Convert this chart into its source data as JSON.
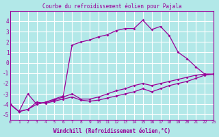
{
  "title": "Courbe du refroidissement éolien pour Pajala",
  "xlabel": "Windchill (Refroidissement éolien,°C)",
  "ylabel": "",
  "background_color": "#b2e8e8",
  "line_color": "#990099",
  "xlim": [
    0,
    23
  ],
  "ylim": [
    -5.5,
    5
  ],
  "xticks": [
    0,
    1,
    2,
    3,
    4,
    5,
    6,
    7,
    8,
    9,
    10,
    11,
    12,
    13,
    14,
    15,
    16,
    17,
    18,
    19,
    20,
    21,
    22,
    23
  ],
  "yticks": [
    -5,
    -4,
    -3,
    -2,
    -1,
    0,
    1,
    2,
    3,
    4
  ],
  "series1_x": [
    0,
    1,
    2,
    3,
    4,
    5,
    6,
    7,
    8,
    9,
    10,
    11,
    12,
    13,
    14,
    15,
    16,
    17,
    18,
    19,
    20,
    21,
    22,
    23
  ],
  "series1_y": [
    -4.0,
    -4.7,
    -4.5,
    -3.8,
    -3.9,
    -3.7,
    -3.5,
    -3.3,
    -3.6,
    -3.7,
    -3.6,
    -3.4,
    -3.2,
    -3.0,
    -2.8,
    -2.5,
    -2.8,
    -2.5,
    -2.2,
    -2.0,
    -1.8,
    -1.5,
    -1.2,
    -1.1
  ],
  "series2_x": [
    0,
    1,
    2,
    3,
    4,
    5,
    6,
    7,
    8,
    9,
    10,
    11,
    12,
    13,
    14,
    15,
    16,
    17,
    18,
    19,
    20,
    21,
    22,
    23
  ],
  "series2_y": [
    -4.0,
    -4.7,
    -3.0,
    -4.0,
    -3.8,
    -3.5,
    -3.2,
    1.7,
    2.0,
    2.2,
    2.5,
    2.7,
    3.1,
    3.3,
    3.3,
    4.1,
    3.2,
    3.5,
    2.6,
    1.0,
    0.4,
    -0.4,
    -1.1,
    -1.1
  ],
  "series3_x": [
    0,
    1,
    2,
    3,
    4,
    5,
    6,
    7,
    8,
    9,
    10,
    11,
    12,
    13,
    14,
    15,
    16,
    17,
    18,
    19,
    20,
    21,
    22,
    23
  ],
  "series3_y": [
    -4.0,
    -4.7,
    -4.5,
    -4.0,
    -3.8,
    -3.6,
    -3.3,
    -3.0,
    -3.5,
    -3.5,
    -3.3,
    -3.0,
    -2.7,
    -2.5,
    -2.2,
    -2.0,
    -2.2,
    -2.0,
    -1.8,
    -1.6,
    -1.4,
    -1.2,
    -1.1,
    -1.1
  ]
}
